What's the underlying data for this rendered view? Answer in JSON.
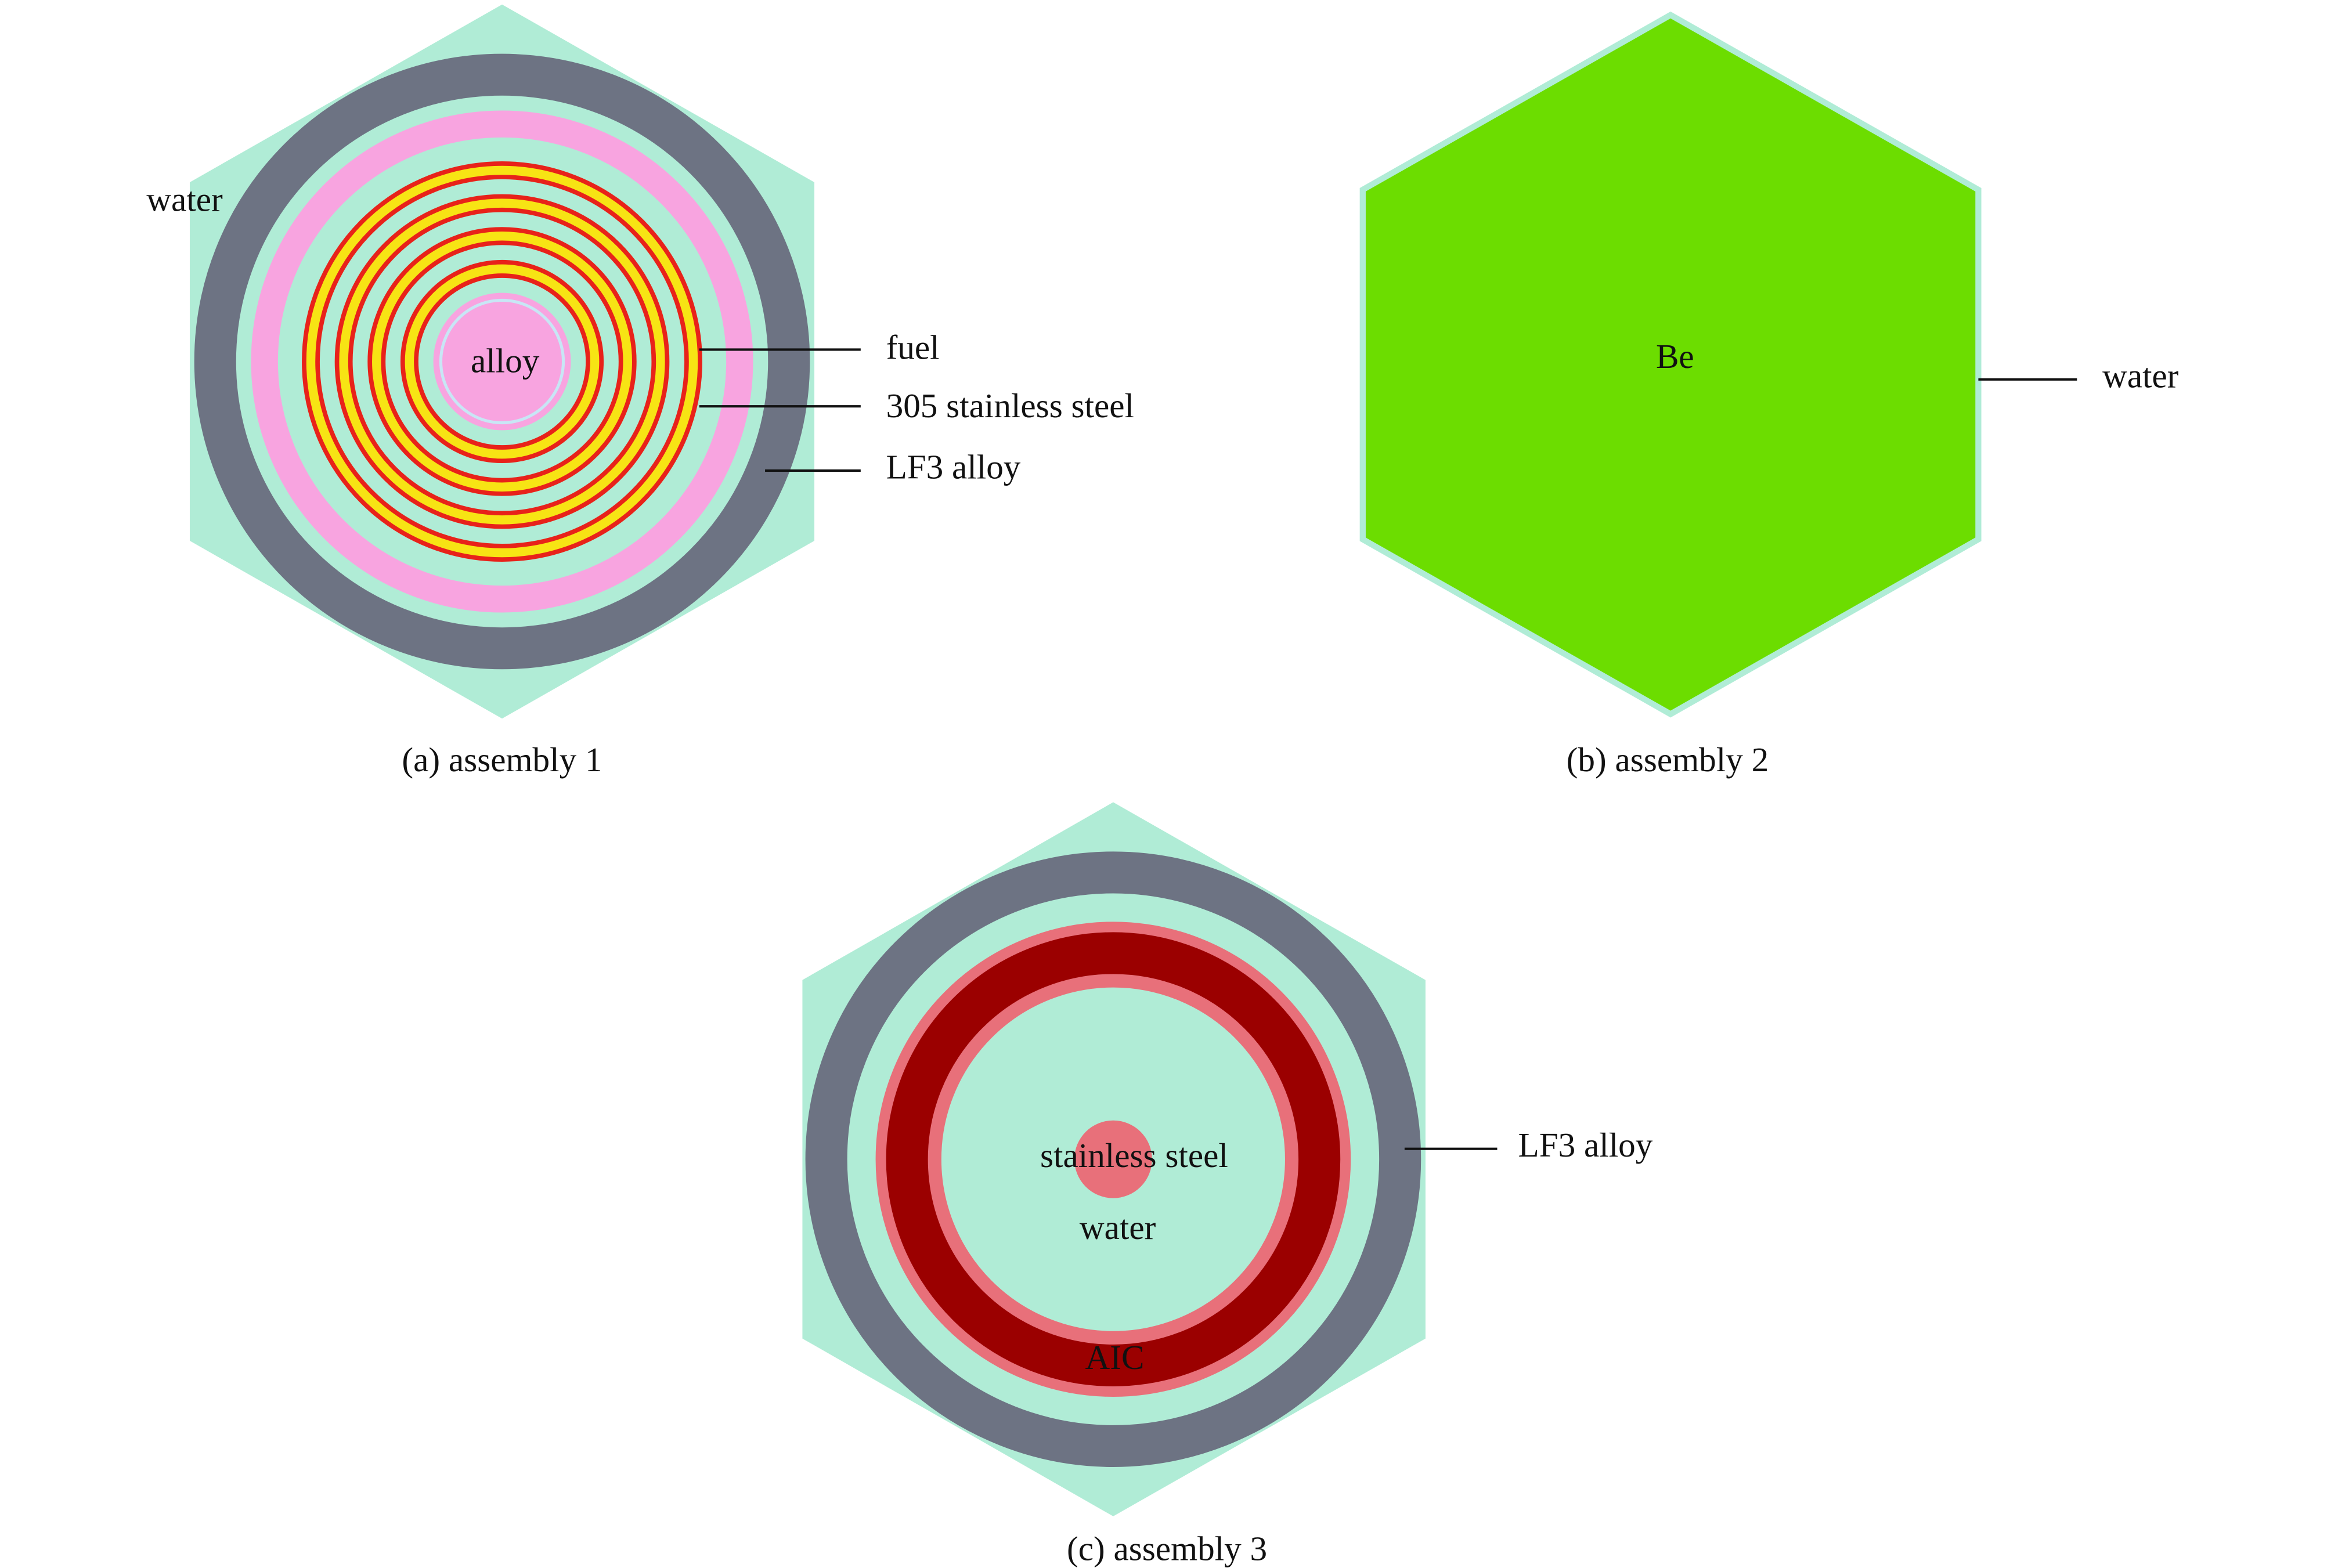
{
  "panels": [
    {
      "caption": "(a) assembly 1",
      "labels": [
        "water",
        "alloy",
        "fuel",
        "305 stainless steel",
        "LF3 alloy"
      ]
    },
    {
      "caption": "(b) assembly 2",
      "labels": [
        "Be",
        "water"
      ]
    },
    {
      "caption": "(c) assembly 3",
      "labels": [
        "stainless steel",
        "water",
        "AIC",
        "LF3 alloy"
      ]
    }
  ]
}
